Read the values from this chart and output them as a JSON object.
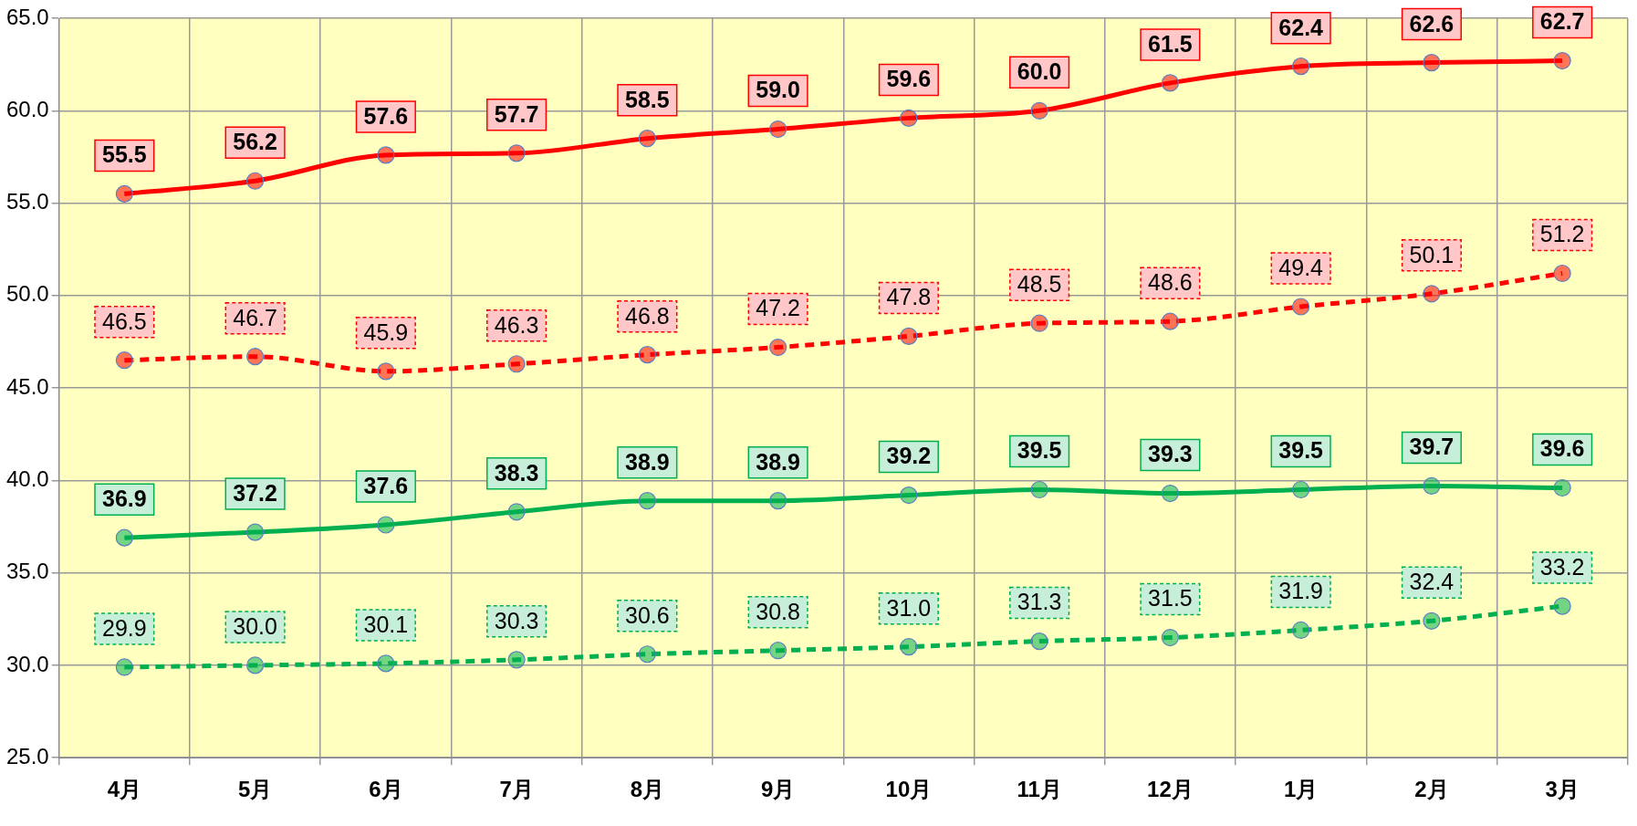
{
  "chart_data": {
    "type": "line",
    "categories": [
      "4月",
      "5月",
      "6月",
      "7月",
      "8月",
      "9月",
      "10月",
      "11月",
      "12月",
      "1月",
      "2月",
      "3月"
    ],
    "series": [
      {
        "color": "#ff0000",
        "line_style": "solid",
        "values": [
          55.5,
          56.2,
          57.6,
          57.7,
          58.5,
          59.0,
          59.6,
          60.0,
          61.5,
          62.4,
          62.6,
          62.7
        ],
        "value_labels": [
          "55.5",
          "56.2",
          "57.6",
          "57.7",
          "58.5",
          "59.0",
          "59.6",
          "60.0",
          "61.5",
          "62.4",
          "62.6",
          "62.7"
        ]
      },
      {
        "color": "#ff0000",
        "line_style": "dashed",
        "values": [
          46.5,
          46.7,
          45.9,
          46.3,
          46.8,
          47.2,
          47.8,
          48.5,
          48.6,
          49.4,
          50.1,
          51.2
        ],
        "value_labels": [
          "46.5",
          "46.7",
          "45.9",
          "46.3",
          "46.8",
          "47.2",
          "47.8",
          "48.5",
          "48.6",
          "49.4",
          "50.1",
          "51.2"
        ]
      },
      {
        "color": "#00b050",
        "line_style": "solid",
        "values": [
          36.9,
          37.2,
          37.6,
          38.3,
          38.9,
          38.9,
          39.2,
          39.5,
          39.3,
          39.5,
          39.7,
          39.6
        ],
        "value_labels": [
          "36.9",
          "37.2",
          "37.6",
          "38.3",
          "38.9",
          "38.9",
          "39.2",
          "39.5",
          "39.3",
          "39.5",
          "39.7",
          "39.6"
        ]
      },
      {
        "color": "#00b050",
        "line_style": "dashed",
        "values": [
          29.9,
          30.0,
          30.1,
          30.3,
          30.6,
          30.8,
          31.0,
          31.3,
          31.5,
          31.9,
          32.4,
          33.2
        ],
        "value_labels": [
          "29.9",
          "30.0",
          "30.1",
          "30.3",
          "30.6",
          "30.8",
          "31.0",
          "31.3",
          "31.5",
          "31.9",
          "32.4",
          "33.2"
        ]
      }
    ],
    "ylim": [
      25,
      65
    ],
    "yticks": [
      {
        "value": 25,
        "label": "25.0"
      },
      {
        "value": 30,
        "label": "30.0"
      },
      {
        "value": 35,
        "label": "35.0"
      },
      {
        "value": 40,
        "label": "40.0"
      },
      {
        "value": 45,
        "label": "45.0"
      },
      {
        "value": 50,
        "label": "50.0"
      },
      {
        "value": 55,
        "label": "55.0"
      },
      {
        "value": 60,
        "label": "60.0"
      },
      {
        "value": 65,
        "label": "65.0"
      }
    ],
    "grid": true,
    "marker": "circle",
    "legend": false
  }
}
